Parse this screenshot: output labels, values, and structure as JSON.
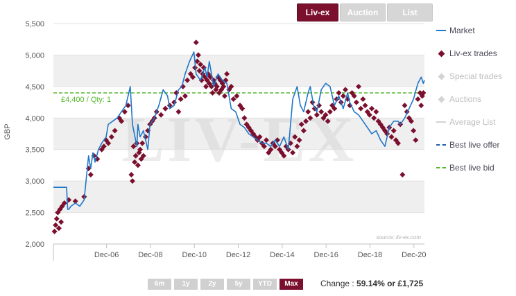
{
  "tabs": [
    {
      "label": "Liv-ex",
      "active": true
    },
    {
      "label": "Auction",
      "active": false
    },
    {
      "label": "List",
      "active": false
    }
  ],
  "legend": [
    {
      "label": "Market",
      "symbol": "line",
      "color": "#1f77c8",
      "enabled": true
    },
    {
      "label": "Liv-ex trades",
      "symbol": "diamond",
      "color": "#7b0f2e",
      "enabled": true
    },
    {
      "label": "Special trades",
      "symbol": "diamond",
      "color": "#d3d3d3",
      "enabled": false
    },
    {
      "label": "Auctions",
      "symbol": "diamond",
      "color": "#d3d3d3",
      "enabled": false
    },
    {
      "label": "Average List",
      "symbol": "line",
      "color": "#d3d3d3",
      "enabled": false
    },
    {
      "label": "Best live offer",
      "symbol": "dash",
      "color": "#1f5fa8",
      "enabled": true
    },
    {
      "label": "Best live bid",
      "symbol": "dash",
      "color": "#52b82a",
      "enabled": true
    }
  ],
  "watermark": "LIV-EX",
  "source_text": "source: liv-ex.com",
  "ranges": [
    {
      "label": "6m",
      "active": false
    },
    {
      "label": "1y",
      "active": false
    },
    {
      "label": "2y",
      "active": false
    },
    {
      "label": "5y",
      "active": false
    },
    {
      "label": "YTD",
      "active": false
    },
    {
      "label": "Max",
      "active": true
    }
  ],
  "change": {
    "label": "Change :",
    "value": "59.14% or £1,725"
  },
  "chart_data": {
    "type": "line",
    "ylabel": "GBP",
    "xlim": [
      2004.5,
      2021.4
    ],
    "ylim": [
      2000,
      5500
    ],
    "y_ticks": [
      2000,
      2500,
      3000,
      3500,
      4000,
      4500,
      5000,
      5500
    ],
    "y_tick_labels": [
      "2,000",
      "2,500",
      "3,000",
      "3,500",
      "4,000",
      "4,500",
      "5,000",
      "5,500"
    ],
    "x_ticks": [
      2006.92,
      2008.92,
      2010.92,
      2012.92,
      2014.92,
      2016.92,
      2018.92,
      2020.92
    ],
    "x_tick_labels": [
      "Dec-06",
      "Dec-08",
      "Dec-10",
      "Dec-12",
      "Dec-14",
      "Dec-16",
      "Dec-18",
      "Dec-20"
    ],
    "grid": true,
    "legend_position": "right",
    "best_live_bid": {
      "value": 4400,
      "label": "£4,400 / Qty: 1"
    },
    "series": [
      {
        "name": "Market",
        "type": "line",
        "x": [
          2004.5,
          2005.1,
          2005.15,
          2005.2,
          2005.3,
          2005.5,
          2005.7,
          2005.9,
          2006.1,
          2006.2,
          2006.3,
          2006.4,
          2006.55,
          2006.7,
          2006.9,
          2007.0,
          2007.2,
          2007.4,
          2007.6,
          2007.8,
          2008.0,
          2008.1,
          2008.3,
          2008.35,
          2008.45,
          2008.6,
          2008.8,
          2008.9,
          2009.1,
          2009.3,
          2009.5,
          2009.7,
          2009.8,
          2010.0,
          2010.2,
          2010.35,
          2010.5,
          2010.7,
          2010.9,
          2011.0,
          2011.2,
          2011.4,
          2011.5,
          2011.6,
          2011.8,
          2012.0,
          2012.2,
          2012.4,
          2012.6,
          2012.8,
          2013.0,
          2013.2,
          2013.4,
          2013.6,
          2013.8,
          2014.0,
          2014.2,
          2014.4,
          2014.6,
          2014.8,
          2015.0,
          2015.2,
          2015.4,
          2015.6,
          2015.75,
          2015.9,
          2016.1,
          2016.2,
          2016.35,
          2016.5,
          2016.7,
          2016.9,
          2017.1,
          2017.3,
          2017.5,
          2017.7,
          2017.9,
          2018.0,
          2018.2,
          2018.4,
          2018.6,
          2018.8,
          2019.0,
          2019.2,
          2019.4,
          2019.6,
          2019.8,
          2020.0,
          2020.2,
          2020.3,
          2020.5,
          2020.7,
          2020.9,
          2021.1,
          2021.25,
          2021.35,
          2021.4
        ],
        "y": [
          2900,
          2900,
          2550,
          2550,
          2600,
          2650,
          2600,
          2700,
          3400,
          3200,
          3450,
          3300,
          3500,
          3600,
          3700,
          3900,
          3950,
          4000,
          4100,
          4200,
          4500,
          3900,
          3550,
          3900,
          3700,
          3800,
          3500,
          3900,
          4000,
          4200,
          4450,
          4350,
          4150,
          4200,
          4450,
          4500,
          4700,
          4900,
          5050,
          4700,
          4600,
          4800,
          4650,
          4900,
          4500,
          4700,
          4600,
          4550,
          4150,
          4100,
          3900,
          3850,
          3750,
          3700,
          3650,
          3600,
          3600,
          3550,
          3650,
          3550,
          3700,
          3500,
          4300,
          4500,
          4200,
          4100,
          4400,
          4500,
          4200,
          4100,
          4450,
          4550,
          4500,
          4200,
          4350,
          4150,
          4400,
          4250,
          4100,
          4050,
          3950,
          3850,
          3750,
          3800,
          3650,
          3550,
          3850,
          3950,
          3950,
          3900,
          4000,
          4150,
          4300,
          4550,
          4650,
          4550,
          4600
        ]
      },
      {
        "name": "Liv-ex trades",
        "type": "scatter",
        "x": [
          2004.55,
          2004.6,
          2004.65,
          2004.7,
          2004.75,
          2004.8,
          2004.85,
          2004.9,
          2005.0,
          2005.2,
          2005.5,
          2005.9,
          2006.1,
          2006.2,
          2006.35,
          2006.5,
          2006.7,
          2006.8,
          2006.9,
          2007.0,
          2007.15,
          2007.3,
          2007.5,
          2007.6,
          2007.75,
          2007.9,
          2008.05,
          2008.1,
          2008.15,
          2008.2,
          2008.25,
          2008.3,
          2008.35,
          2008.4,
          2008.45,
          2008.5,
          2008.55,
          2008.6,
          2008.7,
          2008.8,
          2008.9,
          2009.0,
          2009.1,
          2009.2,
          2009.4,
          2009.6,
          2009.8,
          2010.0,
          2010.1,
          2010.2,
          2010.3,
          2010.4,
          2010.5,
          2010.6,
          2010.75,
          2010.85,
          2010.95,
          2011.0,
          2011.05,
          2011.1,
          2011.15,
          2011.2,
          2011.25,
          2011.3,
          2011.35,
          2011.4,
          2011.45,
          2011.5,
          2011.55,
          2011.6,
          2011.65,
          2011.7,
          2011.75,
          2011.8,
          2011.85,
          2011.9,
          2011.95,
          2012.0,
          2012.05,
          2012.1,
          2012.15,
          2012.2,
          2012.25,
          2012.3,
          2012.35,
          2012.4,
          2012.5,
          2012.6,
          2012.7,
          2012.85,
          2013.0,
          2013.1,
          2013.2,
          2013.3,
          2013.4,
          2013.5,
          2013.6,
          2013.7,
          2013.8,
          2013.9,
          2014.0,
          2014.1,
          2014.2,
          2014.3,
          2014.4,
          2014.5,
          2014.6,
          2014.7,
          2014.8,
          2014.9,
          2015.0,
          2015.1,
          2015.2,
          2015.3,
          2015.4,
          2015.5,
          2015.6,
          2015.7,
          2015.8,
          2015.9,
          2016.0,
          2016.1,
          2016.2,
          2016.3,
          2016.4,
          2016.5,
          2016.6,
          2016.7,
          2016.8,
          2016.9,
          2017.0,
          2017.1,
          2017.2,
          2017.3,
          2017.4,
          2017.5,
          2017.6,
          2017.7,
          2017.8,
          2017.9,
          2018.0,
          2018.1,
          2018.2,
          2018.3,
          2018.4,
          2018.5,
          2018.6,
          2018.7,
          2018.8,
          2018.9,
          2019.0,
          2019.1,
          2019.2,
          2019.3,
          2019.4,
          2019.5,
          2019.6,
          2019.7,
          2019.8,
          2019.9,
          2020.0,
          2020.1,
          2020.2,
          2020.3,
          2020.4,
          2020.5,
          2020.6,
          2020.7,
          2020.8,
          2020.9,
          2021.0,
          2021.1,
          2021.2,
          2021.25,
          2021.3,
          2021.35
        ],
        "y": [
          2200,
          2300,
          2400,
          2500,
          2250,
          2550,
          2350,
          2600,
          2650,
          2700,
          2680,
          2750,
          3200,
          3100,
          3400,
          3350,
          3500,
          3550,
          3650,
          3600,
          3700,
          3800,
          4000,
          3950,
          4100,
          4200,
          3100,
          3000,
          3550,
          3300,
          3400,
          3600,
          3250,
          3450,
          3500,
          3350,
          3600,
          3400,
          3700,
          3800,
          3900,
          3950,
          4000,
          4100,
          4050,
          4150,
          4200,
          4250,
          4400,
          4100,
          4300,
          4500,
          4350,
          4600,
          4700,
          4650,
          4800,
          5200,
          4900,
          5000,
          4750,
          4850,
          4600,
          4700,
          4800,
          4650,
          4500,
          4600,
          4700,
          4550,
          4650,
          4500,
          4400,
          4600,
          4550,
          4450,
          4500,
          4650,
          4400,
          4600,
          4450,
          4550,
          4500,
          4350,
          4600,
          4700,
          4450,
          4500,
          4300,
          4350,
          4200,
          4150,
          4000,
          3900,
          3850,
          3800,
          3750,
          3700,
          3650,
          3700,
          3600,
          3550,
          3650,
          3450,
          3500,
          3600,
          3550,
          3650,
          3500,
          3450,
          3400,
          3550,
          3500,
          3600,
          3450,
          3700,
          3550,
          3650,
          3900,
          3800,
          3950,
          4100,
          4000,
          4250,
          4150,
          4050,
          4200,
          4100,
          4000,
          4050,
          3950,
          4100,
          4200,
          4150,
          4300,
          4400,
          4250,
          4350,
          4450,
          4300,
          4200,
          4400,
          4350,
          4250,
          4500,
          4150,
          4300,
          4200,
          4100,
          4050,
          4150,
          4000,
          4100,
          3950,
          3900,
          3850,
          3800,
          3750,
          3850,
          3700,
          3800,
          3650,
          3600,
          3900,
          3100,
          4200,
          4100,
          4000,
          3950,
          3800,
          3650,
          4300,
          4400,
          4200,
          4350,
          4400
        ]
      }
    ]
  }
}
